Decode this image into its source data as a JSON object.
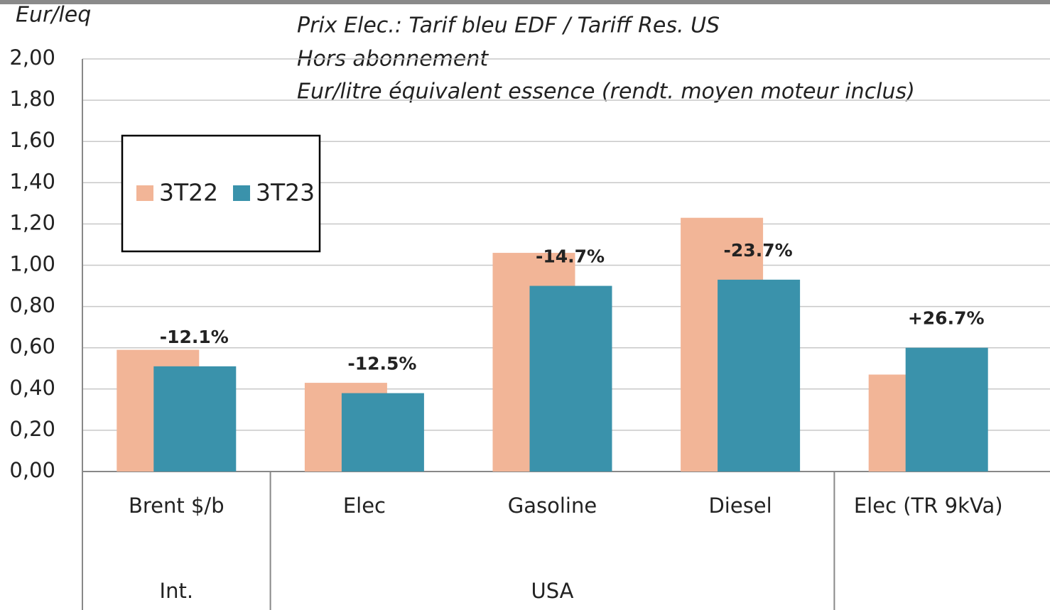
{
  "chart_data": {
    "type": "bar",
    "y_axis_label": "Eur/leq",
    "subtitle": [
      "Prix Elec.: Tarif bleu EDF / Tariff Res. US",
      "Hors abonnement",
      "Eur/litre équivalent essence (rendt. moyen moteur inclus)"
    ],
    "categories": [
      "Brent $/b",
      "Elec",
      "Gasoline",
      "Diesel",
      "Elec (TR 9kVa)"
    ],
    "group_labels": [
      "Int.",
      "USA",
      null
    ],
    "series": [
      {
        "name": "3T22",
        "color": "#f2b597",
        "values": [
          0.59,
          0.43,
          1.06,
          1.23,
          0.47
        ]
      },
      {
        "name": "3T23",
        "color": "#3a92ab",
        "values": [
          0.51,
          0.38,
          0.9,
          0.93,
          0.6
        ]
      }
    ],
    "annotations": [
      "-12.1%",
      "-12.5%",
      "-14.7%",
      "-23.7%",
      "+26.7%"
    ],
    "ylim": [
      0,
      2
    ],
    "yticks": [
      {
        "value": 0,
        "label": "0,00"
      },
      {
        "value": 0.2,
        "label": "0,20"
      },
      {
        "value": 0.4,
        "label": "0,40"
      },
      {
        "value": 0.6,
        "label": "0,60"
      },
      {
        "value": 0.8,
        "label": "0,80"
      },
      {
        "value": 1,
        "label": "1,00"
      },
      {
        "value": 1.2,
        "label": "1,20"
      },
      {
        "value": 1.4,
        "label": "1,40"
      },
      {
        "value": 1.6,
        "label": "1,60"
      },
      {
        "value": 1.8,
        "label": "1,80"
      },
      {
        "value": 2,
        "label": "2,00"
      }
    ],
    "grid": true
  }
}
